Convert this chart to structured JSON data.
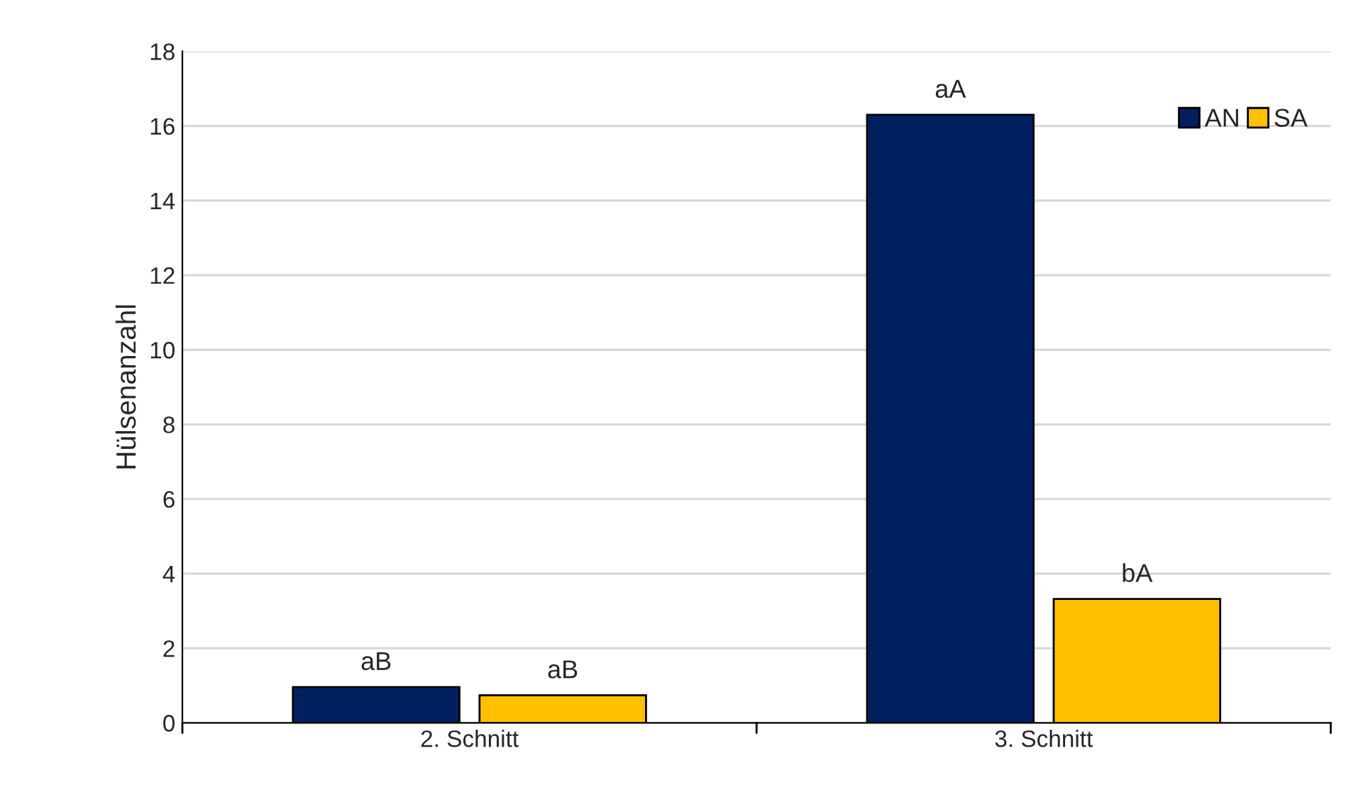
{
  "chart_data": {
    "type": "bar",
    "ylabel": "Hülsenanzahl",
    "categories": [
      "2. Schnitt",
      "3. Schnitt"
    ],
    "series": [
      {
        "name": "AN",
        "color": "#002060",
        "values": [
          0.96,
          16.3
        ],
        "value_labels": [
          "aB",
          "aA"
        ]
      },
      {
        "name": "SA",
        "color": "#ffc000",
        "values": [
          0.74,
          3.32
        ],
        "value_labels": [
          "aB",
          "bA"
        ]
      }
    ],
    "ylim": [
      0,
      18
    ],
    "yticks": [
      0,
      2,
      4,
      6,
      8,
      10,
      12,
      14,
      16,
      18
    ],
    "grid": "y",
    "legend": "top right"
  }
}
